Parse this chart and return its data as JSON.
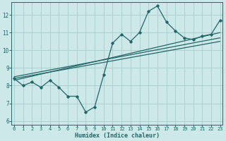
{
  "xlabel": "Humidex (Indice chaleur)",
  "x_ticks": [
    0,
    1,
    2,
    3,
    4,
    5,
    6,
    7,
    8,
    9,
    10,
    11,
    12,
    13,
    14,
    15,
    16,
    17,
    18,
    19,
    20,
    21,
    22,
    23
  ],
  "ylim": [
    5.8,
    12.7
  ],
  "xlim": [
    -0.3,
    23.3
  ],
  "yticks": [
    6,
    7,
    8,
    9,
    10,
    11,
    12
  ],
  "bg_color": "#cce8e8",
  "grid_color": "#aacccc",
  "line_color": "#226666",
  "data_x": [
    0,
    1,
    2,
    3,
    4,
    5,
    6,
    7,
    8,
    9,
    10,
    11,
    12,
    13,
    14,
    15,
    16,
    17,
    18,
    19,
    20,
    21,
    22,
    23
  ],
  "data_y": [
    8.4,
    8.0,
    8.2,
    7.9,
    8.3,
    7.9,
    7.4,
    7.4,
    6.5,
    6.8,
    8.6,
    10.4,
    10.9,
    10.5,
    11.0,
    12.2,
    12.5,
    11.6,
    11.1,
    10.7,
    10.6,
    10.8,
    10.9,
    11.7
  ],
  "reg_lines": [
    {
      "x": [
        0,
        23
      ],
      "y": [
        8.4,
        10.5
      ]
    },
    {
      "x": [
        0,
        23
      ],
      "y": [
        8.5,
        10.7
      ]
    },
    {
      "x": [
        0,
        23
      ],
      "y": [
        8.3,
        11.0
      ]
    }
  ]
}
